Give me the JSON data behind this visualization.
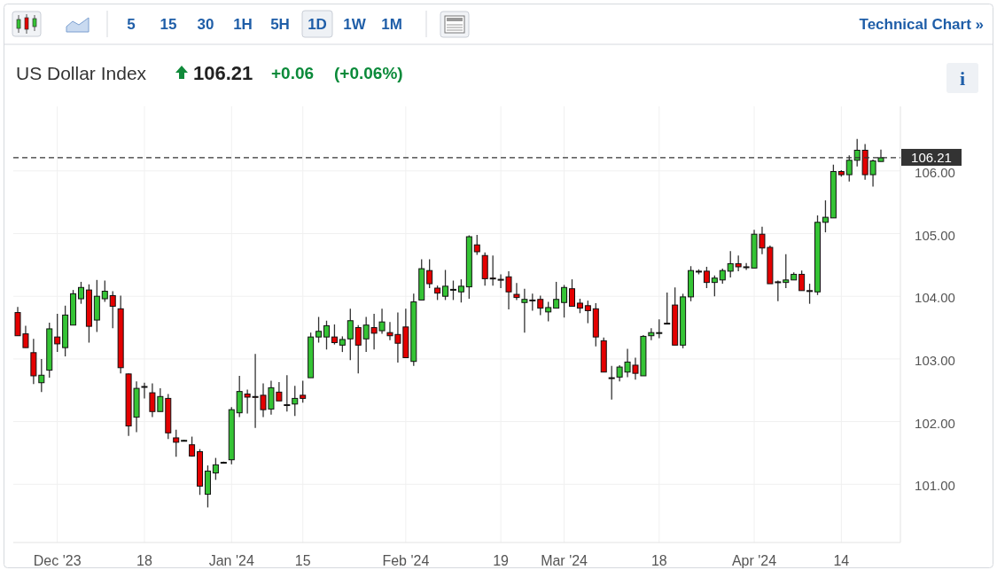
{
  "chart_data": {
    "type": "candlestick",
    "title": "US Dollar Index",
    "annotations": [
      "5",
      "15",
      "30",
      "1H",
      "5H",
      "1D",
      "1W",
      "1M",
      "Technical Chart »",
      "106.21",
      "+0.06",
      "(+0.06%)",
      "i"
    ],
    "categories": [
      null,
      null,
      null,
      null,
      null,
      "Dec '23",
      null,
      null,
      null,
      null,
      null,
      null,
      null,
      null,
      null,
      null,
      "18",
      null,
      null,
      null,
      null,
      null,
      null,
      null,
      null,
      null,
      null,
      "Jan '24",
      null,
      null,
      null,
      null,
      null,
      null,
      null,
      null,
      "15",
      null,
      null,
      null,
      null,
      null,
      null,
      null,
      null,
      null,
      null,
      null,
      null,
      "Feb '24",
      null,
      null,
      null,
      null,
      null,
      null,
      null,
      null,
      null,
      null,
      null,
      "19",
      null,
      null,
      null,
      null,
      null,
      null,
      null,
      "Mar '24",
      null,
      null,
      null,
      null,
      null,
      null,
      null,
      null,
      null,
      null,
      null,
      "18",
      null,
      null,
      null,
      null,
      null,
      null,
      null,
      null,
      null,
      null,
      null,
      "Apr '24",
      null,
      null,
      null,
      null,
      null,
      null,
      null,
      null,
      null,
      null,
      "14",
      null,
      null,
      null,
      null,
      null
    ],
    "ohlc": [
      [
        103.74,
        103.83,
        103.37,
        103.37
      ],
      [
        103.4,
        103.53,
        103.18,
        103.18
      ],
      [
        103.1,
        103.32,
        102.6,
        102.73
      ],
      [
        102.62,
        103.0,
        102.47,
        102.74
      ],
      [
        102.82,
        103.58,
        102.7,
        103.48
      ],
      [
        103.35,
        103.72,
        103.11,
        103.24
      ],
      [
        103.18,
        103.85,
        103.04,
        103.7
      ],
      [
        103.54,
        104.1,
        103.54,
        104.04
      ],
      [
        103.96,
        104.23,
        103.88,
        104.14
      ],
      [
        104.1,
        104.19,
        103.26,
        103.52
      ],
      [
        103.62,
        104.26,
        103.43,
        104.0
      ],
      [
        103.96,
        104.25,
        103.91,
        104.08
      ],
      [
        104.01,
        104.08,
        103.49,
        103.84
      ],
      [
        103.8,
        104.01,
        102.77,
        102.86
      ],
      [
        102.76,
        102.77,
        101.77,
        101.93
      ],
      [
        102.07,
        102.64,
        101.83,
        102.53
      ],
      [
        102.56,
        102.62,
        102.37,
        102.55
      ],
      [
        102.46,
        102.61,
        102.07,
        102.16
      ],
      [
        102.16,
        102.53,
        102.16,
        102.4
      ],
      [
        102.37,
        102.44,
        101.72,
        101.82
      ],
      [
        101.74,
        101.87,
        101.44,
        101.67
      ],
      [
        101.7,
        101.71,
        101.69,
        101.7
      ],
      [
        101.63,
        101.76,
        101.44,
        101.45
      ],
      [
        101.52,
        101.56,
        100.83,
        100.97
      ],
      [
        100.84,
        101.3,
        100.63,
        101.21
      ],
      [
        101.18,
        101.42,
        101.07,
        101.31
      ],
      [
        101.35,
        101.36,
        101.34,
        101.35
      ],
      [
        101.39,
        102.23,
        101.32,
        102.19
      ],
      [
        102.14,
        102.73,
        102.07,
        102.48
      ],
      [
        102.44,
        102.51,
        102.13,
        102.39
      ],
      [
        102.4,
        103.08,
        101.9,
        102.39
      ],
      [
        102.42,
        102.61,
        102.07,
        102.19
      ],
      [
        102.2,
        102.65,
        102.11,
        102.54
      ],
      [
        102.47,
        102.63,
        102.33,
        102.33
      ],
      [
        102.27,
        102.74,
        102.16,
        102.26
      ],
      [
        102.28,
        102.57,
        102.09,
        102.37
      ],
      [
        102.42,
        102.65,
        102.3,
        102.37
      ],
      [
        102.7,
        103.42,
        102.7,
        103.35
      ],
      [
        103.35,
        103.67,
        103.26,
        103.44
      ],
      [
        103.35,
        103.61,
        103.15,
        103.53
      ],
      [
        103.35,
        103.55,
        103.23,
        103.26
      ],
      [
        103.22,
        103.36,
        103.11,
        103.31
      ],
      [
        103.32,
        103.8,
        102.98,
        103.61
      ],
      [
        103.5,
        103.54,
        102.77,
        103.22
      ],
      [
        103.32,
        103.67,
        103.11,
        103.54
      ],
      [
        103.5,
        103.72,
        103.15,
        103.41
      ],
      [
        103.45,
        103.8,
        103.4,
        103.59
      ],
      [
        103.42,
        103.59,
        103.3,
        103.37
      ],
      [
        103.39,
        103.74,
        102.94,
        103.25
      ],
      [
        103.51,
        103.8,
        103.02,
        103.02
      ],
      [
        102.96,
        104.04,
        102.89,
        103.91
      ],
      [
        103.94,
        104.59,
        103.94,
        104.44
      ],
      [
        104.41,
        104.59,
        104.13,
        104.2
      ],
      [
        104.13,
        104.17,
        103.94,
        104.05
      ],
      [
        104.0,
        104.42,
        103.94,
        104.16
      ],
      [
        104.1,
        104.25,
        103.94,
        104.11
      ],
      [
        104.07,
        104.27,
        103.9,
        104.16
      ],
      [
        104.15,
        104.97,
        103.96,
        104.95
      ],
      [
        104.82,
        104.98,
        104.66,
        104.71
      ],
      [
        104.65,
        104.7,
        104.17,
        104.28
      ],
      [
        104.29,
        104.65,
        104.17,
        104.28
      ],
      [
        104.27,
        104.35,
        104.13,
        104.26
      ],
      [
        104.31,
        104.4,
        103.79,
        104.07
      ],
      [
        104.03,
        104.21,
        103.94,
        103.98
      ],
      [
        103.9,
        104.12,
        103.42,
        103.95
      ],
      [
        103.94,
        104.04,
        103.77,
        103.93
      ],
      [
        103.95,
        104.01,
        103.7,
        103.81
      ],
      [
        103.75,
        103.91,
        103.6,
        103.82
      ],
      [
        103.81,
        104.23,
        103.81,
        103.95
      ],
      [
        103.9,
        104.18,
        103.66,
        104.14
      ],
      [
        104.12,
        104.27,
        103.84,
        103.84
      ],
      [
        103.89,
        103.96,
        103.73,
        103.81
      ],
      [
        103.85,
        103.93,
        103.57,
        103.77
      ],
      [
        103.8,
        103.89,
        103.2,
        103.35
      ],
      [
        103.29,
        103.34,
        102.79,
        102.79
      ],
      [
        102.7,
        102.89,
        102.35,
        102.69
      ],
      [
        102.71,
        102.9,
        102.64,
        102.87
      ],
      [
        102.79,
        103.16,
        102.71,
        102.95
      ],
      [
        102.9,
        103.02,
        102.67,
        102.77
      ],
      [
        102.73,
        103.38,
        102.73,
        103.36
      ],
      [
        103.37,
        103.49,
        103.3,
        103.42
      ],
      [
        103.41,
        103.63,
        103.33,
        103.42
      ],
      [
        103.57,
        104.06,
        103.56,
        103.56
      ],
      [
        103.86,
        104.14,
        103.22,
        103.22
      ],
      [
        103.22,
        104.04,
        103.17,
        103.99
      ],
      [
        103.99,
        104.48,
        103.92,
        104.41
      ],
      [
        104.4,
        104.43,
        104.35,
        104.39
      ],
      [
        104.4,
        104.47,
        104.13,
        104.22
      ],
      [
        104.22,
        104.33,
        104.0,
        104.29
      ],
      [
        104.26,
        104.44,
        104.2,
        104.41
      ],
      [
        104.4,
        104.72,
        104.3,
        104.52
      ],
      [
        104.52,
        104.65,
        104.4,
        104.47
      ],
      [
        104.47,
        104.53,
        104.42,
        104.46
      ],
      [
        104.45,
        105.06,
        104.45,
        104.99
      ],
      [
        104.99,
        105.11,
        104.67,
        104.77
      ],
      [
        104.78,
        104.81,
        104.2,
        104.2
      ],
      [
        104.23,
        104.25,
        103.92,
        104.22
      ],
      [
        104.22,
        104.67,
        104.13,
        104.26
      ],
      [
        104.26,
        104.38,
        104.26,
        104.35
      ],
      [
        104.35,
        104.41,
        104.09,
        104.09
      ],
      [
        104.09,
        104.2,
        103.88,
        104.08
      ],
      [
        104.07,
        105.29,
        104.02,
        105.18
      ],
      [
        105.18,
        105.53,
        105.02,
        105.26
      ],
      [
        105.25,
        106.1,
        105.25,
        105.99
      ],
      [
        105.99,
        106.01,
        105.91,
        105.94
      ],
      [
        105.94,
        106.25,
        105.83,
        106.17
      ],
      [
        106.17,
        106.51,
        106.07,
        106.33
      ],
      [
        106.33,
        106.43,
        105.86,
        105.94
      ],
      [
        105.94,
        106.18,
        105.75,
        106.16
      ],
      [
        106.15,
        106.34,
        106.15,
        106.21
      ]
    ],
    "ylim": [
      100.07,
      107.03
    ],
    "yticks": [
      {
        "value": 101,
        "label": "101.00"
      },
      {
        "value": 102,
        "label": "102.00"
      },
      {
        "value": 103,
        "label": "103.00"
      },
      {
        "value": 104,
        "label": "104.00"
      },
      {
        "value": 105,
        "label": "105.00"
      },
      {
        "value": 106,
        "label": "106.00"
      }
    ],
    "grid": true,
    "ref_lines": [
      {
        "axis": "y",
        "value": 106.21,
        "label": "106.21",
        "color": "#333333",
        "line_style": "dashed"
      }
    ]
  }
}
